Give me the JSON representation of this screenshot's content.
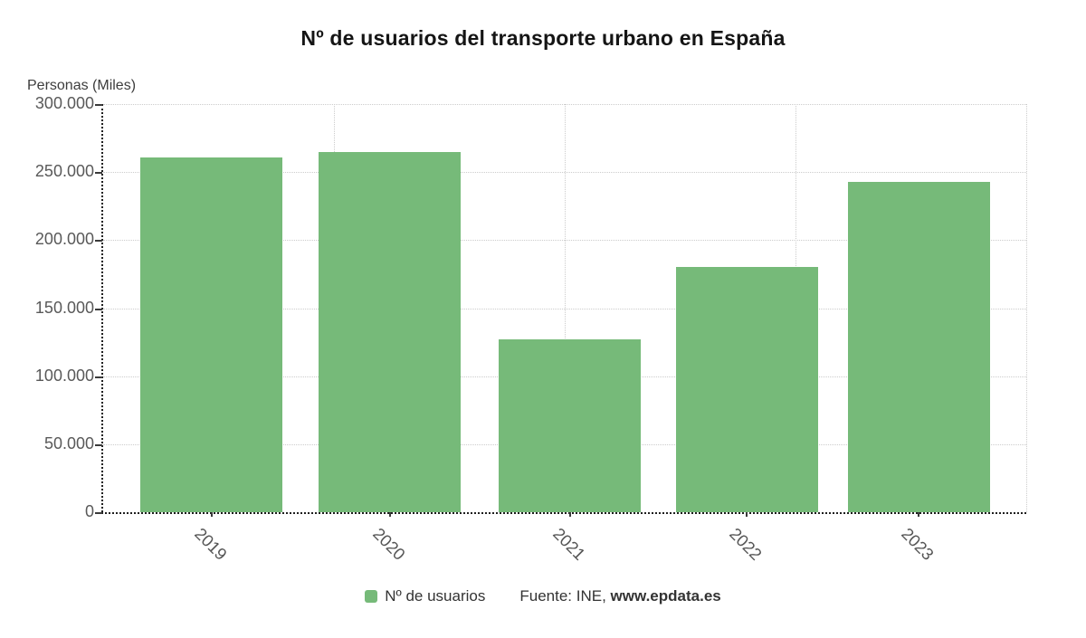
{
  "title": "Nº de usuarios del transporte urbano en España",
  "y_axis_title": "Personas (Miles)",
  "chart_data": {
    "type": "bar",
    "title": "Nº de usuarios del transporte urbano en España",
    "xlabel": "",
    "ylabel": "Personas (Miles)",
    "categories": [
      "2019",
      "2020",
      "2021",
      "2022",
      "2023"
    ],
    "series": [
      {
        "name": "Nº de usuarios",
        "color": "#76ba79",
        "values": [
          261000,
          265000,
          127000,
          180000,
          243000
        ]
      }
    ],
    "ylim": [
      0,
      300000
    ],
    "ytick_step": 50000,
    "yticks": [
      {
        "value": 300000,
        "label": "300.000"
      },
      {
        "value": 250000,
        "label": "250.000"
      },
      {
        "value": 200000,
        "label": "200.000"
      },
      {
        "value": 150000,
        "label": "150.000"
      },
      {
        "value": 100000,
        "label": "100.000"
      },
      {
        "value": 50000,
        "label": "50.000"
      },
      {
        "value": 0,
        "label": "0"
      }
    ],
    "grid": true,
    "legend_position": "bottom",
    "x_gridline_pct": [
      25,
      50,
      75,
      100
    ],
    "bar_centers_pct": [
      11.72,
      31.08,
      50.54,
      69.75,
      88.38
    ],
    "bar_width_pct": 15.39
  },
  "legend": {
    "items": [
      {
        "label": "Nº de usuarios",
        "color": "#76ba79"
      }
    ]
  },
  "footer": {
    "source_prefix": "Fuente: INE,",
    "source_link": "www.epdata.es"
  },
  "colors": {
    "bar": "#76ba79",
    "grid": "#cccccc",
    "axis": "#1f1f1f",
    "tick_label": "#595959",
    "title": "#151515",
    "text": "#333333",
    "background": "#ffffff"
  }
}
